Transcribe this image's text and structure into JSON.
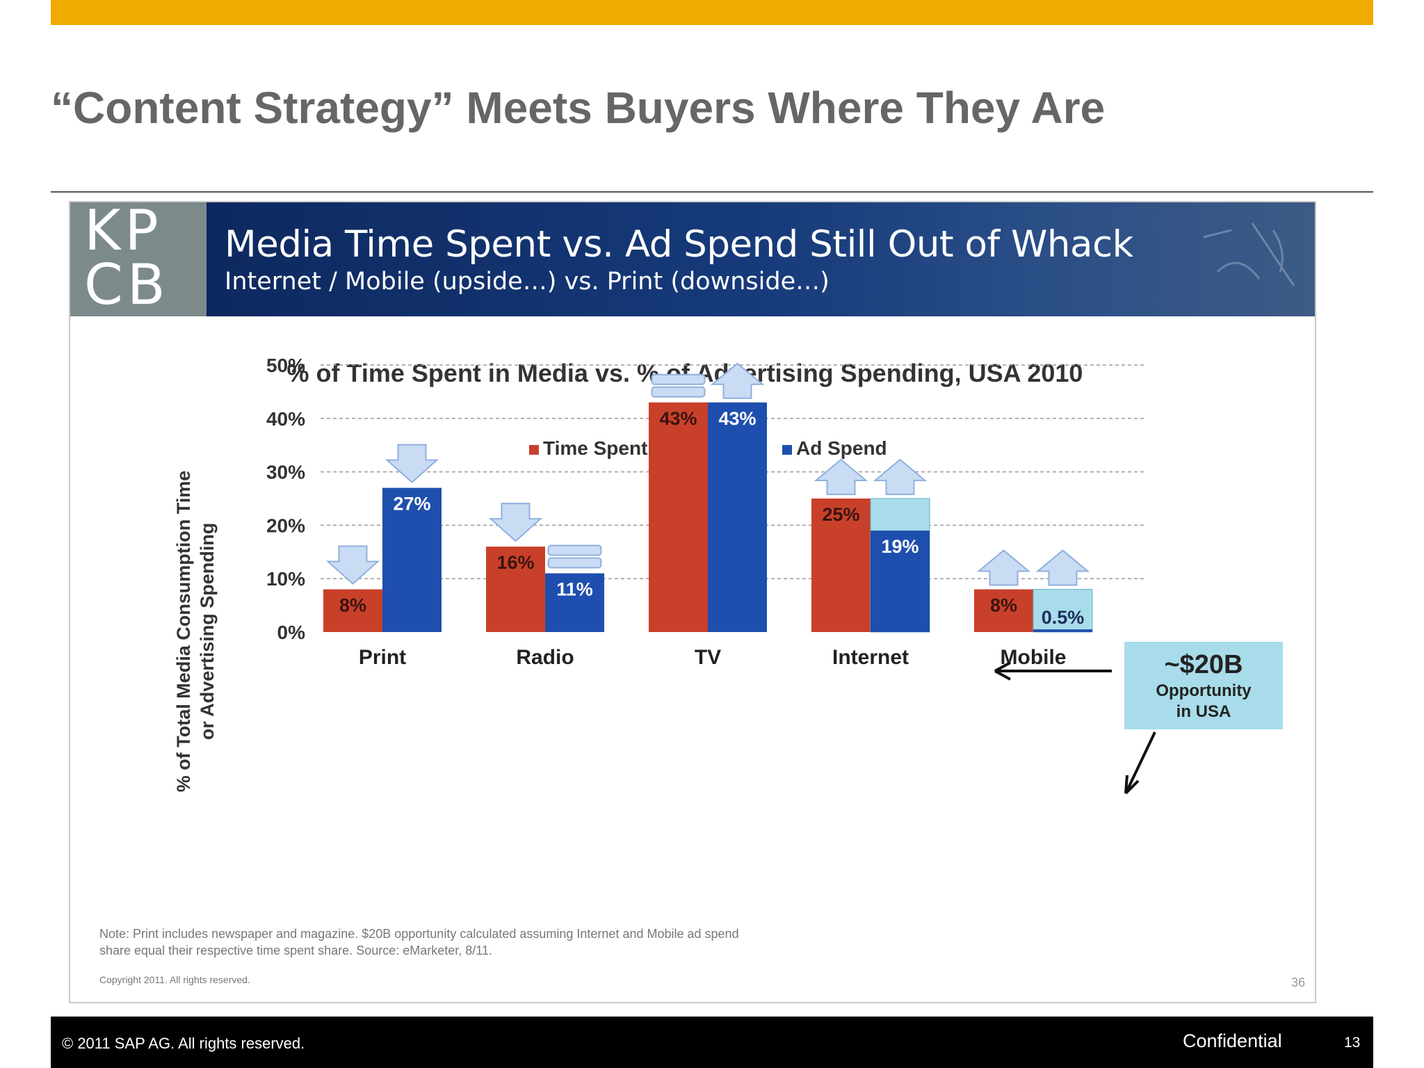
{
  "slide": {
    "title": "“Content Strategy” Meets Buyers Where They Are"
  },
  "banner": {
    "logo_line1": "KP",
    "logo_line2": "CB",
    "title": "Media Time Spent vs. Ad Spend Still Out of Whack",
    "subtitle": "Internet / Mobile (upside…) vs. Print (downside…)"
  },
  "chart_data": {
    "type": "bar",
    "title": "% of Time Spent in Media vs. % of Advertising Spending, USA 2010",
    "ylabel_line1": "% of Total Media Consumption Time",
    "ylabel_line2": "or Advertising Spending",
    "xlabel": "",
    "ylim": [
      0,
      50
    ],
    "yticks": [
      "0%",
      "10%",
      "20%",
      "30%",
      "40%",
      "50%"
    ],
    "grid": true,
    "legend_position": "top-center",
    "categories": [
      "Print",
      "Radio",
      "TV",
      "Internet",
      "Mobile"
    ],
    "series": [
      {
        "name": "Time Spent",
        "color": "#c9402a",
        "values": [
          8,
          16,
          43,
          25,
          8
        ],
        "labels": [
          "8%",
          "16%",
          "43%",
          "25%",
          "8%"
        ]
      },
      {
        "name": "Ad Spend",
        "color": "#1e4fae",
        "values": [
          27,
          11,
          43,
          19,
          0.5
        ],
        "labels": [
          "27%",
          "11%",
          "43%",
          "19%",
          "0.5%"
        ]
      }
    ],
    "opportunity_gap": {
      "color": "#a8dcea",
      "values": [
        null,
        null,
        null,
        25,
        8
      ]
    },
    "trend_markers": {
      "Time Spent": [
        "down-arrow",
        "down-arrow",
        "flat",
        "up-arrow",
        "up-arrow"
      ],
      "Ad Spend": [
        "down-arrow",
        "flat",
        "up-arrow",
        "up-arrow",
        "up-arrow"
      ]
    },
    "callout": {
      "amount": "~$20B",
      "line1": "Opportunity",
      "line2": "in USA",
      "color": "#a8dcea"
    }
  },
  "note": {
    "line1": "Note: Print includes newspaper and magazine. $20B opportunity calculated assuming Internet and Mobile ad spend",
    "line2": "share equal their respective time spent share. Source: eMarketer, 8/11.",
    "copyright": "Copyright 2011. All rights reserved.",
    "page": "36"
  },
  "footer": {
    "copyright": "©  2011 SAP AG. All rights reserved.",
    "confidential": "Confidential",
    "page": "13"
  }
}
